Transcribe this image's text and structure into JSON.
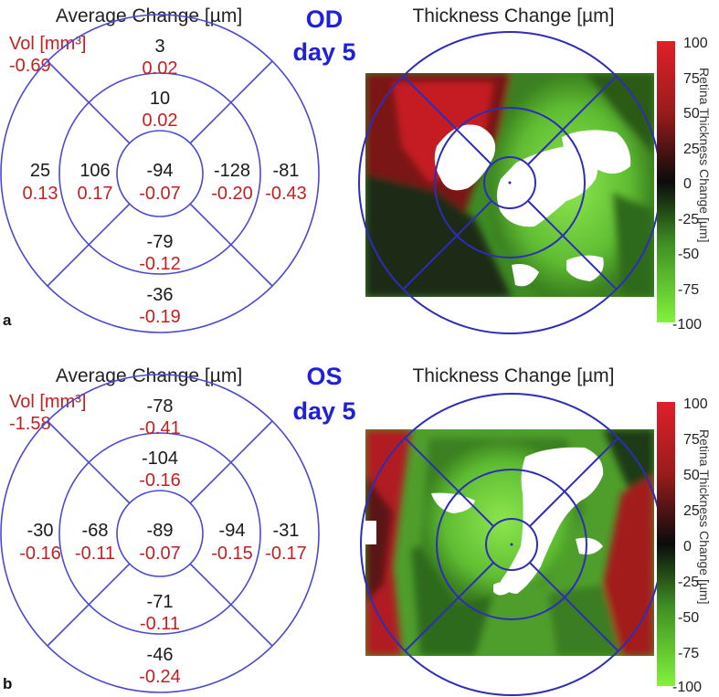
{
  "colorbar": {
    "label": "Retina Thickness Change [µm]",
    "ticks": [
      "100",
      "75",
      "50",
      "25",
      "0",
      "-25",
      "-50",
      "-75",
      "-100"
    ],
    "colors": {
      "top": "#d81f2a",
      "mid": "#0b0b0b",
      "bottom": "#7ef03a"
    }
  },
  "colors": {
    "circle": "#4a4ad0",
    "eye_label": "#2020d8",
    "volume_red": "#c41f1f",
    "value_black": "#1a1a1a"
  },
  "panels": [
    {
      "panel_label": "a",
      "grid_title": "Average Change [µm]",
      "vol_label": "Vol [mm³]",
      "vol_total": "-0.69",
      "eye": "OD",
      "day": "day 5",
      "map_title": "Thickness Change [µm]",
      "sectors": {
        "outer_superior": {
          "avg": "3",
          "vol": "0.02"
        },
        "inner_superior": {
          "avg": "10",
          "vol": "0.02"
        },
        "outer_temporal_left": {
          "avg": "25",
          "vol": "0.13"
        },
        "inner_left": {
          "avg": "106",
          "vol": "0.17"
        },
        "center": {
          "avg": "-94",
          "vol": "-0.07"
        },
        "inner_right": {
          "avg": "-128",
          "vol": "-0.20"
        },
        "outer_right": {
          "avg": "-81",
          "vol": "-0.43"
        },
        "inner_inferior": {
          "avg": "-79",
          "vol": "-0.12"
        },
        "outer_inferior": {
          "avg": "-36",
          "vol": "-0.19"
        }
      }
    },
    {
      "panel_label": "b",
      "grid_title": "Average Change [µm]",
      "vol_label": "Vol [mm³]",
      "vol_total": "-1.58",
      "eye": "OS",
      "day": "day 5",
      "map_title": "Thickness Change [µm]",
      "sectors": {
        "outer_superior": {
          "avg": "-78",
          "vol": "-0.41"
        },
        "inner_superior": {
          "avg": "-104",
          "vol": "-0.16"
        },
        "outer_temporal_left": {
          "avg": "-30",
          "vol": "-0.16"
        },
        "inner_left": {
          "avg": "-68",
          "vol": "-0.11"
        },
        "center": {
          "avg": "-89",
          "vol": "-0.07"
        },
        "inner_right": {
          "avg": "-94",
          "vol": "-0.15"
        },
        "outer_right": {
          "avg": "-31",
          "vol": "-0.17"
        },
        "inner_inferior": {
          "avg": "-71",
          "vol": "-0.11"
        },
        "outer_inferior": {
          "avg": "-46",
          "vol": "-0.24"
        }
      }
    }
  ]
}
